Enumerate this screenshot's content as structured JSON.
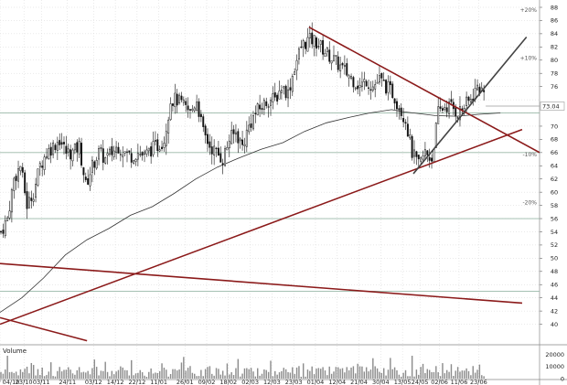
{
  "chart_data": {
    "type": "candlestick",
    "price_axis": {
      "min": 38,
      "max": 88,
      "ticks": [
        40,
        42,
        44,
        46,
        48,
        50,
        52,
        54,
        56,
        58,
        60,
        62,
        64,
        66,
        68,
        70,
        72,
        74,
        76,
        78,
        80,
        82,
        84,
        86,
        88
      ]
    },
    "x_axis": {
      "labels": [
        "04/10",
        "23/10",
        "03/11",
        "24/11",
        "03/12",
        "14/12",
        "22/12",
        "11/01",
        "26/01",
        "09/02",
        "18/02",
        "02/03",
        "12/03",
        "23/03",
        "01/04",
        "12/04",
        "21/04",
        "30/04",
        "13/05",
        "24/05",
        "02/06",
        "11/06",
        "23/06"
      ],
      "label_sessions": [
        0,
        11,
        19,
        31,
        43,
        53,
        63,
        73,
        85,
        95,
        105,
        115,
        125,
        135,
        145,
        155,
        165,
        175,
        185,
        193,
        202,
        211,
        220
      ]
    },
    "last_price_label": "73.04",
    "last_price": 73.04,
    "percent_levels": [
      {
        "label": "+20%",
        "value": 87.6
      },
      {
        "label": "+10%",
        "value": 80.3
      },
      {
        "label": "-10%",
        "value": 65.7
      },
      {
        "label": "-20%",
        "value": 58.4
      }
    ],
    "horizontal_levels": [
      72,
      66,
      56,
      45
    ],
    "trendlines": [
      {
        "color": "#8b1a1a",
        "from": [
          142,
          85
        ],
        "to": [
          248,
          66
        ]
      },
      {
        "color": "#8b1a1a",
        "from": [
          0,
          40
        ],
        "to": [
          240,
          69.5
        ]
      },
      {
        "color": "#8b1a1a",
        "from": [
          0,
          49.2
        ],
        "to": [
          240,
          43.2
        ]
      },
      {
        "color": "#8b1a1a",
        "from": [
          0,
          41
        ],
        "to": [
          40,
          37.5
        ]
      },
      {
        "color": "#444444",
        "from": [
          190,
          62.8
        ],
        "to": [
          242,
          83.5
        ]
      }
    ],
    "moving_average": {
      "sessions": [
        0,
        10,
        20,
        30,
        40,
        50,
        60,
        70,
        80,
        90,
        100,
        110,
        120,
        130,
        140,
        150,
        160,
        170,
        180,
        185,
        190,
        200,
        210,
        220,
        230
      ],
      "values": [
        41.8,
        44,
        47,
        50.5,
        52.8,
        54.5,
        56.5,
        57.8,
        59.8,
        62,
        63.8,
        65.2,
        66.5,
        67.5,
        69.2,
        70.5,
        71.3,
        72,
        72.5,
        72.2,
        72,
        71.6,
        71.5,
        71.8,
        72
      ]
    },
    "price_path": {
      "sessions": [
        0,
        3,
        6,
        9,
        12,
        15,
        18,
        21,
        24,
        27,
        30,
        33,
        36,
        39,
        42,
        45,
        48,
        51,
        54,
        57,
        60,
        63,
        66,
        69,
        72,
        75,
        78,
        81,
        84,
        87,
        90,
        93,
        96,
        99,
        102,
        105,
        108,
        111,
        114,
        117,
        120,
        123,
        126,
        129,
        132,
        135,
        138,
        141,
        144,
        147,
        150,
        153,
        156,
        159,
        162,
        165,
        168,
        171,
        174,
        177,
        180,
        183,
        186,
        189,
        192,
        195,
        198,
        201,
        204,
        207,
        210,
        213,
        216,
        219,
        222
      ],
      "closes": [
        54,
        56,
        62,
        64,
        58,
        60,
        64,
        66,
        67,
        68,
        66,
        66,
        67,
        61,
        64,
        66,
        65,
        66,
        67,
        66,
        65.5,
        66,
        65.5,
        66.5,
        67,
        68,
        74,
        74,
        73,
        72,
        74,
        69,
        67,
        66,
        65,
        68,
        69,
        67,
        70,
        72,
        73,
        74,
        74,
        76,
        75,
        79,
        82,
        83,
        83,
        82,
        81,
        80,
        79,
        78,
        77,
        76,
        77,
        76,
        77,
        76,
        75,
        73,
        71,
        66,
        64,
        66,
        65,
        72,
        73,
        73,
        72,
        73,
        74,
        76,
        75
      ]
    },
    "volume": {
      "label": "Volume",
      "ticks": [
        0,
        10000,
        20000
      ],
      "tick_labels": [
        "0",
        "10000",
        "20000"
      ],
      "max": 25000
    }
  }
}
